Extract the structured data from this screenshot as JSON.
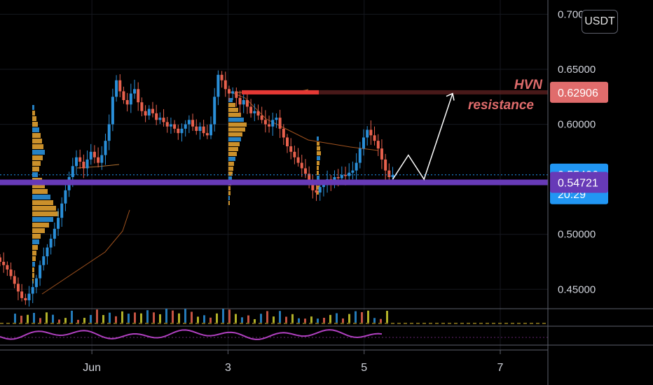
{
  "currency_button": "USDT",
  "chart_data": {
    "type": "candlestick",
    "yaxis": {
      "ticks": [
        "0.70000",
        "0.65000",
        "0.60000",
        "0.50000",
        "0.45000"
      ],
      "tick_values": [
        0.7,
        0.65,
        0.6,
        0.5,
        0.45
      ],
      "ylim": [
        0.433,
        0.713
      ]
    },
    "xaxis": {
      "ticks": [
        "Jun",
        "3",
        "5",
        "7"
      ],
      "tick_dates": [
        1,
        3,
        5,
        7
      ],
      "xlim": [
        -0.35,
        7.7
      ]
    },
    "price_tags": [
      {
        "value": 0.62906,
        "label": "0.62906",
        "color": "#e06c6c"
      },
      {
        "value": 0.55406,
        "label": "0.55406",
        "sublabel": "20:29",
        "color": "#2196f3"
      },
      {
        "value": 0.54721,
        "label": "0.54721",
        "color": "#673ab7"
      }
    ],
    "annotations": [
      {
        "line1": "HVN",
        "line2": "resistance",
        "level": 0.62906
      }
    ],
    "support_line": {
      "value": 0.5472,
      "color": "#673ab7"
    },
    "current_price_line": {
      "value": 0.55406,
      "color": "#2196f3"
    },
    "forecast_path": [
      [
        5.42,
        0.55
      ],
      [
        5.65,
        0.572
      ],
      [
        5.88,
        0.55
      ],
      [
        6.3,
        0.628
      ]
    ],
    "candles_close": [
      0.475,
      0.472,
      0.468,
      0.462,
      0.455,
      0.448,
      0.442,
      0.44,
      0.446,
      0.452,
      0.46,
      0.472,
      0.48,
      0.488,
      0.496,
      0.505,
      0.515,
      0.528,
      0.54,
      0.552,
      0.562,
      0.57,
      0.566,
      0.56,
      0.568,
      0.575,
      0.57,
      0.565,
      0.572,
      0.585,
      0.6,
      0.625,
      0.64,
      0.63,
      0.622,
      0.618,
      0.628,
      0.632,
      0.62,
      0.612,
      0.608,
      0.614,
      0.61,
      0.604,
      0.606,
      0.602,
      0.598,
      0.6,
      0.596,
      0.592,
      0.596,
      0.6,
      0.604,
      0.598,
      0.594,
      0.598,
      0.592,
      0.59,
      0.6,
      0.625,
      0.645,
      0.64,
      0.632,
      0.628,
      0.63,
      0.624,
      0.618,
      0.622,
      0.616,
      0.61,
      0.612,
      0.608,
      0.604,
      0.6,
      0.598,
      0.604,
      0.606,
      0.596,
      0.588,
      0.58,
      0.575,
      0.57,
      0.565,
      0.56,
      0.555,
      0.548,
      0.54,
      0.538,
      0.543,
      0.546,
      0.55,
      0.548,
      0.552,
      0.551,
      0.554,
      0.553,
      0.556,
      0.558,
      0.565,
      0.578,
      0.588,
      0.595,
      0.59,
      0.585,
      0.578,
      0.568,
      0.558,
      0.552,
      0.554
    ]
  }
}
